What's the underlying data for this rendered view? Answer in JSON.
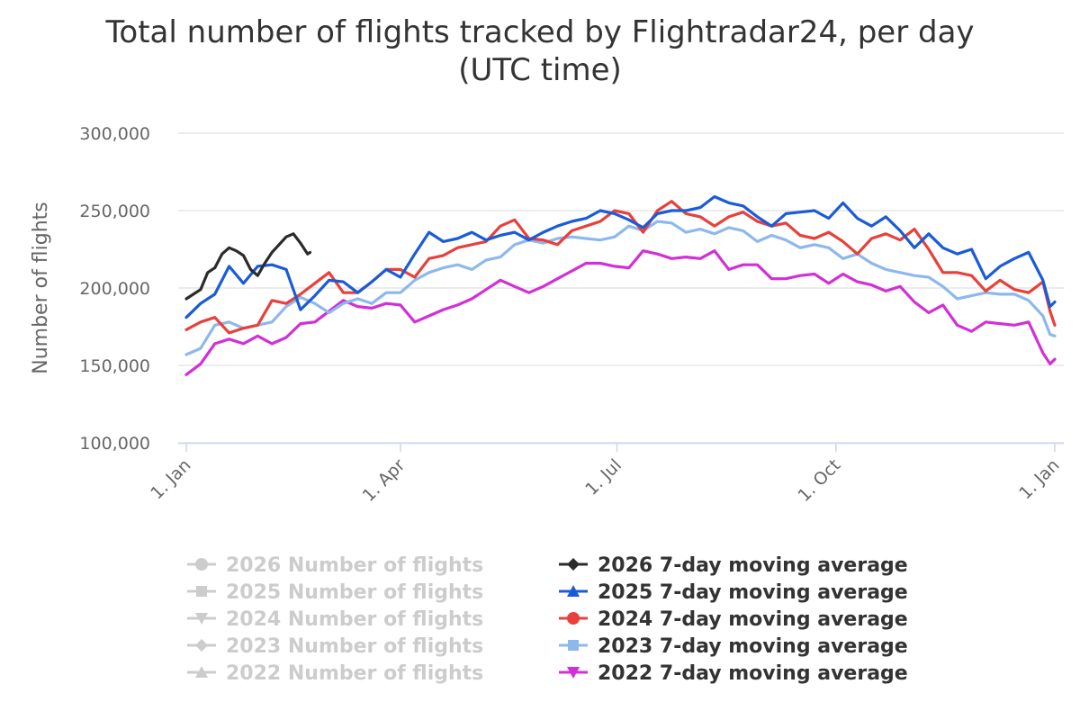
{
  "chart_data": {
    "type": "line",
    "title": "Total number of flights tracked by Flightradar24, per day",
    "subtitle_line": "(UTC time)",
    "ylabel": "Number of flights",
    "xlabel": "",
    "ylim": [
      100000,
      300000
    ],
    "xlim_days": [
      0,
      365
    ],
    "y_ticks": [
      "100,000",
      "150,000",
      "200,000",
      "250,000",
      "300,000"
    ],
    "x_ticks": [
      {
        "label": "1. Jan",
        "day": 0
      },
      {
        "label": "1. Apr",
        "day": 90
      },
      {
        "label": "1. Jul",
        "day": 181
      },
      {
        "label": "1. Oct",
        "day": 273
      },
      {
        "label": "1. Jan",
        "day": 365
      }
    ],
    "grid": true,
    "legend_position": "bottom",
    "series": [
      {
        "name": "2026 7-day moving average",
        "color": "#2b2b2b",
        "marker": "diamond",
        "x": [
          0,
          3,
          6,
          9,
          12,
          15,
          18,
          21,
          24,
          27,
          30,
          33,
          36,
          39,
          42,
          45,
          48,
          51,
          52
        ],
        "y": [
          193000,
          196000,
          199000,
          210000,
          213000,
          222000,
          226000,
          224000,
          221000,
          212000,
          208000,
          216000,
          223000,
          228000,
          233000,
          235000,
          229000,
          222000,
          223000
        ]
      },
      {
        "name": "2025 7-day moving average",
        "color": "#1a5bd9",
        "marker": "triangle",
        "x": [
          0,
          6,
          12,
          18,
          24,
          30,
          36,
          42,
          48,
          54,
          60,
          66,
          72,
          78,
          84,
          90,
          96,
          102,
          108,
          114,
          120,
          126,
          132,
          138,
          144,
          150,
          156,
          162,
          168,
          174,
          180,
          186,
          192,
          198,
          204,
          210,
          216,
          222,
          228,
          234,
          240,
          246,
          252,
          258,
          264,
          270,
          276,
          282,
          288,
          294,
          300,
          306,
          312,
          318,
          324,
          330,
          336,
          342,
          348,
          354,
          360,
          363,
          365
        ],
        "y": [
          181000,
          190000,
          196000,
          214000,
          203000,
          214000,
          215000,
          212000,
          186000,
          195000,
          205000,
          204000,
          197000,
          204000,
          212000,
          207000,
          222000,
          236000,
          230000,
          232000,
          236000,
          231000,
          234000,
          236000,
          231000,
          236000,
          240000,
          243000,
          245000,
          250000,
          248000,
          244000,
          239000,
          248000,
          250000,
          250000,
          252000,
          259000,
          255000,
          253000,
          246000,
          240000,
          248000,
          249000,
          250000,
          245000,
          255000,
          245000,
          240000,
          246000,
          237000,
          226000,
          235000,
          226000,
          222000,
          225000,
          206000,
          214000,
          219000,
          223000,
          205000,
          188000,
          191000
        ]
      },
      {
        "name": "2024 7-day moving average",
        "color": "#e8403a",
        "marker": "circle",
        "x": [
          0,
          6,
          12,
          18,
          24,
          30,
          36,
          42,
          48,
          54,
          60,
          66,
          72,
          78,
          84,
          90,
          96,
          102,
          108,
          114,
          120,
          126,
          132,
          138,
          144,
          150,
          156,
          162,
          168,
          174,
          180,
          186,
          192,
          198,
          204,
          210,
          216,
          222,
          228,
          234,
          240,
          246,
          252,
          258,
          264,
          270,
          276,
          282,
          288,
          294,
          300,
          306,
          312,
          318,
          324,
          330,
          336,
          342,
          348,
          354,
          360,
          363,
          365
        ],
        "y": [
          173000,
          178000,
          181000,
          171000,
          174000,
          176000,
          192000,
          190000,
          196000,
          203000,
          210000,
          197000,
          197000,
          204000,
          212000,
          212000,
          207000,
          219000,
          221000,
          226000,
          228000,
          230000,
          240000,
          244000,
          232000,
          231000,
          228000,
          237000,
          240000,
          243000,
          250000,
          248000,
          236000,
          250000,
          256000,
          248000,
          246000,
          240000,
          246000,
          249000,
          243000,
          240000,
          242000,
          234000,
          232000,
          236000,
          230000,
          222000,
          232000,
          235000,
          231000,
          238000,
          225000,
          210000,
          210000,
          208000,
          198000,
          205000,
          199000,
          197000,
          204000,
          185000,
          176000
        ]
      },
      {
        "name": "2023 7-day moving average",
        "color": "#8db8ee",
        "marker": "square",
        "x": [
          0,
          6,
          12,
          18,
          24,
          30,
          36,
          42,
          48,
          54,
          60,
          66,
          72,
          78,
          84,
          90,
          96,
          102,
          108,
          114,
          120,
          126,
          132,
          138,
          144,
          150,
          156,
          162,
          168,
          174,
          180,
          186,
          192,
          198,
          204,
          210,
          216,
          222,
          228,
          234,
          240,
          246,
          252,
          258,
          264,
          270,
          276,
          282,
          288,
          294,
          300,
          306,
          312,
          318,
          324,
          330,
          336,
          342,
          348,
          354,
          360,
          363,
          365
        ],
        "y": [
          157000,
          161000,
          176000,
          178000,
          174000,
          176000,
          178000,
          188000,
          194000,
          190000,
          184000,
          190000,
          193000,
          190000,
          197000,
          197000,
          205000,
          210000,
          213000,
          215000,
          212000,
          218000,
          220000,
          228000,
          231000,
          229000,
          232000,
          233000,
          232000,
          231000,
          233000,
          240000,
          237000,
          243000,
          242000,
          236000,
          238000,
          235000,
          239000,
          237000,
          230000,
          234000,
          231000,
          226000,
          228000,
          226000,
          219000,
          222000,
          216000,
          212000,
          210000,
          208000,
          207000,
          201000,
          193000,
          195000,
          197000,
          196000,
          196000,
          192000,
          182000,
          170000,
          169000
        ]
      },
      {
        "name": "2022 7-day moving average",
        "color": "#d22fd6",
        "marker": "triangle-down",
        "x": [
          0,
          6,
          12,
          18,
          24,
          30,
          36,
          42,
          48,
          54,
          60,
          66,
          72,
          78,
          84,
          90,
          96,
          102,
          108,
          114,
          120,
          126,
          132,
          138,
          144,
          150,
          156,
          162,
          168,
          174,
          180,
          186,
          192,
          198,
          204,
          210,
          216,
          222,
          228,
          234,
          240,
          246,
          252,
          258,
          264,
          270,
          276,
          282,
          288,
          294,
          300,
          306,
          312,
          318,
          324,
          330,
          336,
          342,
          348,
          354,
          360,
          363,
          365
        ],
        "y": [
          144000,
          151000,
          164000,
          167000,
          164000,
          169000,
          164000,
          168000,
          177000,
          178000,
          185000,
          192000,
          188000,
          187000,
          190000,
          189000,
          178000,
          182000,
          186000,
          189000,
          193000,
          199000,
          205000,
          201000,
          197000,
          201000,
          206000,
          211000,
          216000,
          216000,
          214000,
          213000,
          224000,
          222000,
          219000,
          220000,
          219000,
          224000,
          212000,
          215000,
          215000,
          206000,
          206000,
          208000,
          209000,
          203000,
          209000,
          204000,
          202000,
          198000,
          201000,
          191000,
          184000,
          189000,
          176000,
          172000,
          178000,
          177000,
          176000,
          178000,
          158000,
          151000,
          154000
        ]
      },
      {
        "name": "2026 Number of flights",
        "color": "#cccccc",
        "marker": "circle",
        "hidden": true,
        "x": [],
        "y": []
      },
      {
        "name": "2025 Number of flights",
        "color": "#cccccc",
        "marker": "square",
        "hidden": true,
        "x": [],
        "y": []
      },
      {
        "name": "2024 Number of flights",
        "color": "#cccccc",
        "marker": "triangle-down",
        "hidden": true,
        "x": [],
        "y": []
      },
      {
        "name": "2023 Number of flights",
        "color": "#cccccc",
        "marker": "diamond",
        "hidden": true,
        "x": [],
        "y": []
      },
      {
        "name": "2022 Number of flights",
        "color": "#cccccc",
        "marker": "triangle",
        "hidden": true,
        "x": [],
        "y": []
      }
    ]
  }
}
